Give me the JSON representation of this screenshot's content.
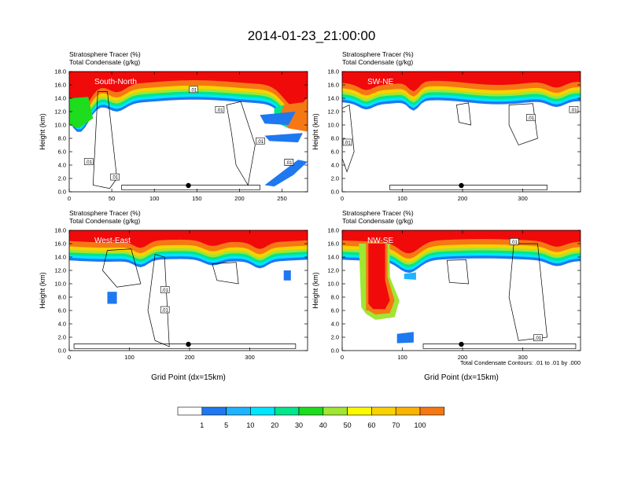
{
  "title": "2014-01-23_21:00:00",
  "colors": {
    "levels": [
      "#ffffff",
      "#1e78f0",
      "#1eb4ff",
      "#00e6ff",
      "#00e68c",
      "#1edc1e",
      "#a0e632",
      "#fafa00",
      "#fad200",
      "#fab400",
      "#f57814",
      "#f03c14",
      "#f00a0a"
    ],
    "contour": "#000000"
  },
  "colorbar": {
    "labels": [
      "1",
      "5",
      "10",
      "20",
      "30",
      "40",
      "50",
      "60",
      "70",
      "100"
    ]
  },
  "footer_note": "Total Condensate Contours: .01 to .01 by .000",
  "chart_data": [
    {
      "type": "heatmap",
      "panel_label": "South-North",
      "title_line1": "Stratosphere Tracer   (%)",
      "title_line2": "Total Condensate   (g/kg)",
      "ylabel": "Height (km)",
      "xlabel": "",
      "xlim": [
        0,
        280
      ],
      "ylim": [
        0,
        18
      ],
      "xticks": [
        "0",
        "50",
        "100",
        "150",
        "200",
        "250"
      ],
      "yticks": [
        "0.0",
        "2.0",
        "4.0",
        "6.0",
        "8.0",
        "10.0",
        "12.0",
        "14.0",
        "16.0",
        "18.0"
      ],
      "contour_labels": [
        ".01",
        ".01",
        ".01",
        ".01",
        ".01",
        ".01",
        ".01"
      ],
      "marker_x": 140
    },
    {
      "type": "heatmap",
      "panel_label": "SW-NE",
      "title_line1": "Stratosphere Tracer   (%)",
      "title_line2": "Total Condensate   (g/kg)",
      "ylabel": "Height (km)",
      "xlabel": "",
      "xlim": [
        0,
        396
      ],
      "ylim": [
        0,
        18
      ],
      "xticks": [
        "0",
        "100",
        "200",
        "300"
      ],
      "yticks": [
        "0.0",
        "2.0",
        "4.0",
        "6.0",
        "8.0",
        "10.0",
        "12.0",
        "14.0",
        "16.0",
        "18.0"
      ],
      "contour_labels": [
        ".01",
        ".01",
        ".01"
      ],
      "marker_x": 198
    },
    {
      "type": "heatmap",
      "panel_label": "West-East",
      "title_line1": "Stratosphere Tracer   (%)",
      "title_line2": "Total Condensate   (g/kg)",
      "ylabel": "Height (km)",
      "xlabel": "Grid Point (dx=15km)",
      "xlim": [
        0,
        396
      ],
      "ylim": [
        0,
        18
      ],
      "xticks": [
        "0",
        "100",
        "200",
        "300"
      ],
      "yticks": [
        "0.0",
        "2.0",
        "4.0",
        "6.0",
        "8.0",
        "10.0",
        "12.0",
        "14.0",
        "16.0",
        "18.0"
      ],
      "contour_labels": [
        ".01",
        ".01"
      ],
      "marker_x": 198
    },
    {
      "type": "heatmap",
      "panel_label": "NW-SE",
      "title_line1": "Stratosphere Tracer   (%)",
      "title_line2": "Total Condensate   (g/kg)",
      "ylabel": "Height (km)",
      "xlabel": "Grid Point (dx=15km)",
      "xlim": [
        0,
        396
      ],
      "ylim": [
        0,
        18
      ],
      "xticks": [
        "0",
        "100",
        "200",
        "300"
      ],
      "yticks": [
        "0.0",
        "2.0",
        "4.0",
        "6.0",
        "8.0",
        "10.0",
        "12.0",
        "14.0",
        "16.0",
        "18.0"
      ],
      "contour_labels": [
        ".01",
        ".01"
      ],
      "marker_x": 198
    }
  ]
}
